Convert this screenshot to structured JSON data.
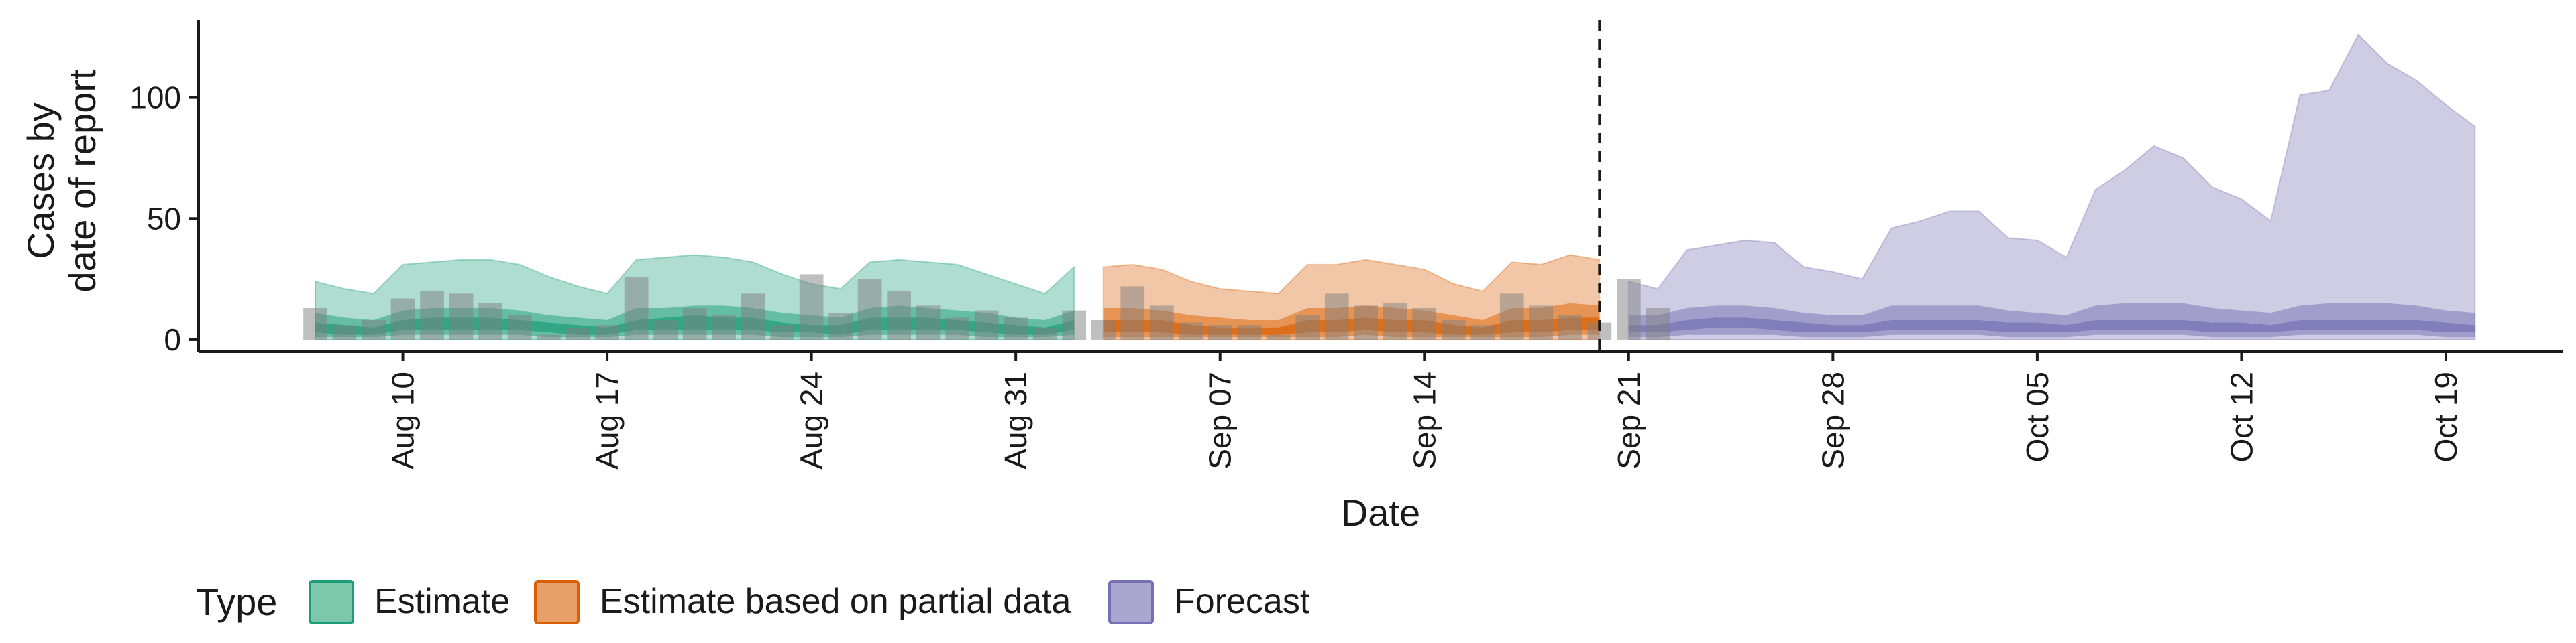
{
  "chart_data": {
    "type": "area",
    "title": "",
    "xlabel": "Date",
    "ylabel": [
      "Cases by",
      "date of report"
    ],
    "x_start": "2020-08-07",
    "x_end": "2020-10-20",
    "xlim": [
      "2020-08-03",
      "2020-10-23"
    ],
    "ylim": [
      -5,
      132
    ],
    "x_ticks": [
      {
        "date": "2020-08-10",
        "label": "Aug 10"
      },
      {
        "date": "2020-08-17",
        "label": "Aug 17"
      },
      {
        "date": "2020-08-24",
        "label": "Aug 24"
      },
      {
        "date": "2020-08-31",
        "label": "Aug 31"
      },
      {
        "date": "2020-09-07",
        "label": "Sep 07"
      },
      {
        "date": "2020-09-14",
        "label": "Sep 14"
      },
      {
        "date": "2020-09-21",
        "label": "Sep 21"
      },
      {
        "date": "2020-09-28",
        "label": "Sep 28"
      },
      {
        "date": "2020-10-05",
        "label": "Oct 05"
      },
      {
        "date": "2020-10-12",
        "label": "Oct 12"
      },
      {
        "date": "2020-10-19",
        "label": "Oct 19"
      }
    ],
    "y_ticks": [
      0,
      50,
      100
    ],
    "forecast_start_line": "2020-09-20",
    "grid": false,
    "legend": {
      "title": "Type",
      "position": "bottom",
      "entries": [
        {
          "label": "Estimate",
          "fill": "#7dc8ad",
          "stroke": "#1b9e77"
        },
        {
          "label": "Estimate based on partial data",
          "fill": "#e8a06a",
          "stroke": "#d95f02"
        },
        {
          "label": "Forecast",
          "fill": "#aaa6d0",
          "stroke": "#7570b3"
        }
      ]
    },
    "colors": {
      "Estimate": "#1b9e77",
      "Estimate based on partial data": "#d95f02",
      "Forecast": "#7570b3",
      "bars": "#808080"
    },
    "observed_cases": [
      13,
      6,
      8,
      17,
      20,
      19,
      15,
      10,
      2,
      5,
      6,
      26,
      8,
      13,
      10,
      19,
      6,
      27,
      11,
      25,
      20,
      14,
      9,
      12,
      9,
      5,
      12,
      8,
      22,
      14,
      7,
      6,
      6,
      2,
      10,
      19,
      14,
      15,
      13,
      8,
      6,
      19,
      14,
      10,
      7,
      25,
      13
    ],
    "series": [
      {
        "name": "Estimate",
        "dates": [
          "2020-08-07",
          "2020-08-08",
          "2020-08-09",
          "2020-08-10",
          "2020-08-11",
          "2020-08-12",
          "2020-08-13",
          "2020-08-14",
          "2020-08-15",
          "2020-08-16",
          "2020-08-17",
          "2020-08-18",
          "2020-08-19",
          "2020-08-20",
          "2020-08-21",
          "2020-08-22",
          "2020-08-23",
          "2020-08-24",
          "2020-08-25",
          "2020-08-26",
          "2020-08-27",
          "2020-08-28",
          "2020-08-29",
          "2020-08-30",
          "2020-08-31",
          "2020-09-01",
          "2020-09-02"
        ],
        "upper90": [
          24,
          21,
          19,
          31,
          32,
          33,
          33,
          31,
          26,
          22,
          19,
          33,
          34,
          35,
          34,
          32,
          27,
          23,
          21,
          32,
          33,
          32,
          31,
          27,
          23,
          19,
          30
        ],
        "upper50": [
          11,
          9,
          8,
          12,
          13,
          13,
          13,
          12,
          10,
          9,
          8,
          13,
          13,
          14,
          14,
          13,
          11,
          10,
          9,
          13,
          14,
          13,
          12,
          11,
          9,
          8,
          12
        ],
        "upper20": [
          7,
          6,
          5,
          8,
          9,
          9,
          9,
          8,
          7,
          6,
          5,
          8,
          9,
          10,
          9,
          9,
          7,
          6,
          6,
          9,
          9,
          9,
          8,
          7,
          6,
          5,
          8
        ],
        "lower20": [
          3,
          2,
          2,
          4,
          4,
          4,
          4,
          4,
          3,
          2,
          2,
          4,
          4,
          4,
          4,
          4,
          3,
          3,
          2,
          4,
          4,
          4,
          4,
          3,
          2,
          2,
          4
        ],
        "lower50": [
          1,
          1,
          1,
          2,
          2,
          2,
          2,
          2,
          1,
          1,
          1,
          2,
          2,
          2,
          2,
          2,
          1,
          1,
          1,
          2,
          2,
          2,
          2,
          1,
          1,
          1,
          2
        ],
        "lower90": [
          0,
          0,
          0,
          0,
          0,
          0,
          0,
          0,
          0,
          0,
          0,
          0,
          0,
          0,
          0,
          0,
          0,
          0,
          0,
          0,
          0,
          0,
          0,
          0,
          0,
          0,
          0
        ]
      },
      {
        "name": "Estimate based on partial data",
        "dates": [
          "2020-09-03",
          "2020-09-04",
          "2020-09-05",
          "2020-09-06",
          "2020-09-07",
          "2020-09-08",
          "2020-09-09",
          "2020-09-10",
          "2020-09-11",
          "2020-09-12",
          "2020-09-13",
          "2020-09-14",
          "2020-09-15",
          "2020-09-16",
          "2020-09-17",
          "2020-09-18",
          "2020-09-19",
          "2020-09-20"
        ],
        "upper90": [
          30,
          31,
          29,
          24,
          21,
          20,
          19,
          31,
          31,
          33,
          31,
          29,
          23,
          20,
          32,
          31,
          35,
          33
        ],
        "upper50": [
          13,
          13,
          12,
          10,
          9,
          8,
          8,
          13,
          13,
          14,
          13,
          12,
          10,
          8,
          13,
          13,
          15,
          14
        ],
        "upper20": [
          8,
          8,
          8,
          6,
          5,
          5,
          5,
          8,
          8,
          9,
          8,
          8,
          6,
          5,
          8,
          8,
          9,
          9
        ],
        "lower20": [
          3,
          3,
          3,
          2,
          2,
          2,
          2,
          3,
          3,
          4,
          3,
          3,
          2,
          2,
          3,
          3,
          4,
          4
        ],
        "lower50": [
          1,
          1,
          1,
          1,
          1,
          1,
          1,
          1,
          1,
          2,
          1,
          1,
          1,
          1,
          1,
          1,
          2,
          2
        ],
        "lower90": [
          0,
          0,
          0,
          0,
          0,
          0,
          0,
          0,
          0,
          0,
          0,
          0,
          0,
          0,
          0,
          0,
          0,
          0
        ]
      },
      {
        "name": "Forecast",
        "dates": [
          "2020-09-21",
          "2020-09-22",
          "2020-09-23",
          "2020-09-24",
          "2020-09-25",
          "2020-09-26",
          "2020-09-27",
          "2020-09-28",
          "2020-09-29",
          "2020-09-30",
          "2020-10-01",
          "2020-10-02",
          "2020-10-03",
          "2020-10-04",
          "2020-10-05",
          "2020-10-06",
          "2020-10-07",
          "2020-10-08",
          "2020-10-09",
          "2020-10-10",
          "2020-10-11",
          "2020-10-12",
          "2020-10-13",
          "2020-10-14",
          "2020-10-15",
          "2020-10-16",
          "2020-10-17",
          "2020-10-18",
          "2020-10-19",
          "2020-10-20"
        ],
        "upper90": [
          24,
          21,
          37,
          39,
          41,
          40,
          30,
          28,
          25,
          46,
          49,
          53,
          53,
          42,
          41,
          34,
          62,
          70,
          80,
          75,
          63,
          58,
          49,
          101,
          103,
          126,
          114,
          107,
          97,
          88
        ],
        "upper50": [
          10,
          10,
          13,
          14,
          14,
          13,
          11,
          10,
          10,
          14,
          14,
          14,
          14,
          12,
          11,
          10,
          14,
          15,
          15,
          15,
          13,
          12,
          11,
          14,
          15,
          15,
          15,
          14,
          12,
          11
        ],
        "upper20": [
          6,
          6,
          8,
          9,
          9,
          8,
          7,
          6,
          6,
          8,
          8,
          8,
          8,
          7,
          7,
          6,
          8,
          8,
          8,
          8,
          7,
          7,
          6,
          8,
          8,
          8,
          8,
          8,
          7,
          6
        ],
        "lower20": [
          3,
          3,
          4,
          5,
          5,
          4,
          3,
          3,
          3,
          4,
          4,
          4,
          4,
          3,
          3,
          3,
          4,
          4,
          4,
          4,
          3,
          3,
          3,
          4,
          4,
          4,
          4,
          4,
          3,
          3
        ],
        "lower50": [
          1,
          1,
          2,
          2,
          2,
          2,
          1,
          1,
          1,
          2,
          2,
          2,
          2,
          1,
          1,
          1,
          2,
          2,
          2,
          2,
          1,
          1,
          1,
          2,
          2,
          2,
          2,
          2,
          1,
          1
        ],
        "lower90": [
          0,
          0,
          0,
          0,
          0,
          0,
          0,
          0,
          0,
          0,
          0,
          0,
          0,
          0,
          0,
          0,
          0,
          0,
          0,
          0,
          0,
          0,
          0,
          0,
          0,
          0,
          0,
          0,
          0,
          0
        ]
      }
    ]
  }
}
